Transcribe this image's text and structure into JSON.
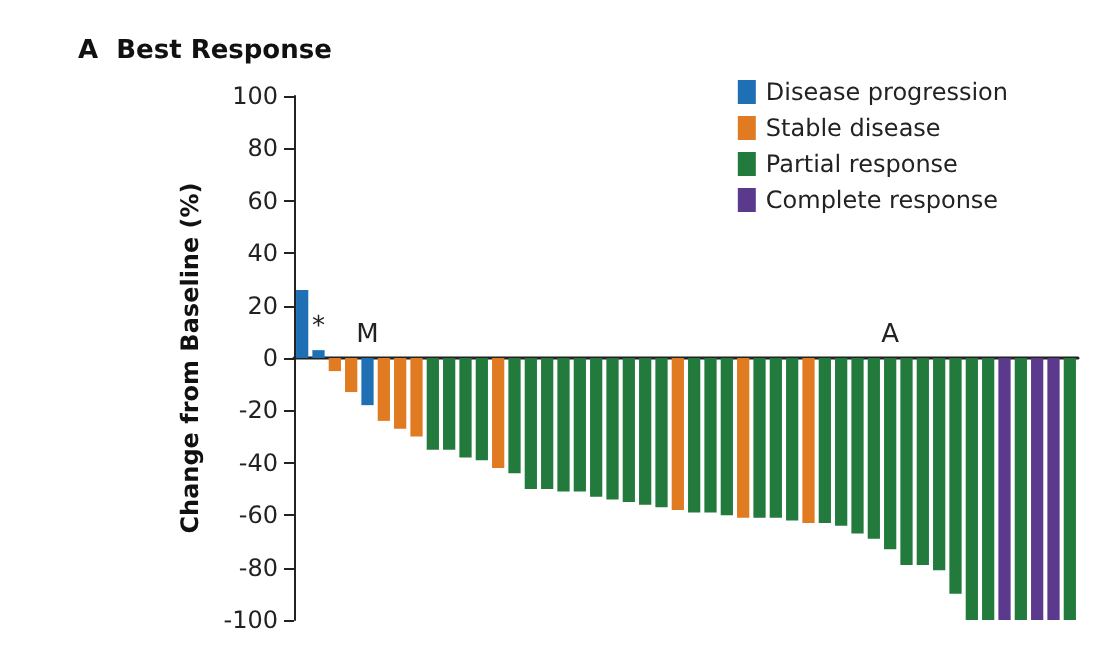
{
  "chart_data": {
    "type": "bar",
    "title": "A  Best Response",
    "ylabel": "Change from Baseline (%)",
    "categories": [
      null,
      null,
      null,
      null,
      null,
      null,
      null,
      null,
      null,
      null,
      null,
      null,
      null,
      null,
      null,
      null,
      null,
      null,
      null,
      null,
      null,
      null,
      null,
      null,
      null,
      null,
      null,
      null,
      null,
      null,
      null,
      null,
      null,
      null,
      null,
      null,
      null,
      null,
      null,
      null,
      null,
      null,
      null,
      null,
      null,
      null,
      null,
      null
    ],
    "series": [
      {
        "name": "Disease progression",
        "color": "#1f6fb5",
        "values": [
          26,
          3,
          null,
          null,
          -18,
          null,
          null,
          null,
          null,
          null,
          null,
          null,
          null,
          null,
          null,
          null,
          null,
          null,
          null,
          null,
          null,
          null,
          null,
          null,
          null,
          null,
          null,
          null,
          null,
          null,
          null,
          null,
          null,
          null,
          null,
          null,
          null,
          null,
          null,
          null,
          null,
          null,
          null,
          null,
          null,
          null,
          null,
          null
        ],
        "value_labels": [
          null,
          "*",
          null,
          null,
          "M",
          null,
          null,
          null,
          null,
          null,
          null,
          null,
          null,
          null,
          null,
          null,
          null,
          null,
          null,
          null,
          null,
          null,
          null,
          null,
          null,
          null,
          null,
          null,
          null,
          null,
          null,
          null,
          null,
          null,
          null,
          null,
          null,
          null,
          null,
          null,
          null,
          null,
          null,
          null,
          null,
          null,
          null,
          null
        ]
      },
      {
        "name": "Stable disease",
        "color": "#e07b21",
        "values": [
          null,
          null,
          -5,
          -13,
          null,
          -24,
          -27,
          -30,
          null,
          null,
          null,
          null,
          -42,
          null,
          null,
          null,
          null,
          null,
          null,
          null,
          null,
          null,
          null,
          -58,
          null,
          null,
          null,
          -61,
          null,
          null,
          null,
          -63,
          null,
          null,
          null,
          null,
          null,
          null,
          null,
          null,
          null,
          null,
          null,
          null,
          null,
          null,
          null,
          null
        ]
      },
      {
        "name": "Partial response",
        "color": "#237a3d",
        "values": [
          null,
          null,
          null,
          null,
          null,
          null,
          null,
          null,
          -35,
          -35,
          -38,
          -39,
          null,
          -44,
          -50,
          -50,
          -51,
          -51,
          -53,
          -54,
          -55,
          -56,
          -57,
          null,
          -59,
          -59,
          -60,
          null,
          -61,
          -61,
          -62,
          null,
          -63,
          -64,
          -67,
          -69,
          -73,
          -79,
          -79,
          -81,
          -90,
          -100,
          -100,
          null,
          -100,
          null,
          null,
          -100
        ],
        "value_labels": [
          null,
          null,
          null,
          null,
          null,
          null,
          null,
          null,
          null,
          null,
          null,
          null,
          null,
          null,
          null,
          null,
          null,
          null,
          null,
          null,
          null,
          null,
          null,
          null,
          null,
          null,
          null,
          null,
          null,
          null,
          null,
          null,
          null,
          null,
          null,
          null,
          "A",
          null,
          null,
          null,
          null,
          null,
          null,
          null,
          null,
          null,
          null,
          null
        ]
      },
      {
        "name": "Complete response",
        "color": "#5b3a8e",
        "values": [
          null,
          null,
          null,
          null,
          null,
          null,
          null,
          null,
          null,
          null,
          null,
          null,
          null,
          null,
          null,
          null,
          null,
          null,
          null,
          null,
          null,
          null,
          null,
          null,
          null,
          null,
          null,
          null,
          null,
          null,
          null,
          null,
          null,
          null,
          null,
          null,
          null,
          null,
          null,
          null,
          null,
          null,
          null,
          -100,
          null,
          -100,
          -100,
          null
        ]
      }
    ],
    "ylim": [
      -100,
      100
    ],
    "yticks": [
      -100,
      -80,
      -60,
      -40,
      -20,
      0,
      20,
      40,
      60,
      80,
      100
    ],
    "legend": "top right"
  }
}
